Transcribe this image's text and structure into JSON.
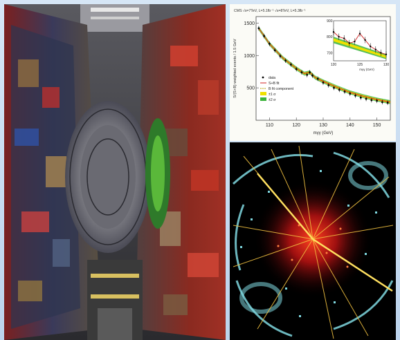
{
  "panels": {
    "detector_photo": "cms-detector-photo",
    "event_display": "collision-event-display"
  },
  "colors": {
    "background": "#cfe0f2",
    "data_marker": "#000000",
    "fit_line": "#d02020",
    "background_component": "#b8a000",
    "band_1sigma": "#f0e000",
    "band_2sigma": "#3cb43c",
    "event_tracks": "#f0c040",
    "event_hits": "#7fd8e0"
  },
  "chart_data": {
    "type": "scatter",
    "title": "CMS  √s=7TeV, L=5.1fb⁻¹  √s=8TeV, L=5.3fb⁻¹",
    "xlabel": "mγγ (GeV)",
    "ylabel": "S/(S+B) weighted events / 1.5 GeV",
    "xlim": [
      105,
      155
    ],
    "ylim": [
      0,
      1600
    ],
    "xticks": [
      110,
      120,
      130,
      140,
      150
    ],
    "yticks": [
      500,
      1000,
      1500
    ],
    "legend": {
      "position": "left",
      "entries": [
        "data",
        "S+B fit",
        "B fit component",
        "±1 σ",
        "±2 σ"
      ]
    },
    "series": [
      {
        "name": "data",
        "x": [
          106,
          108,
          110,
          112,
          114,
          116,
          118,
          120,
          122,
          124,
          125,
          126,
          128,
          130,
          132,
          134,
          136,
          138,
          140,
          142,
          144,
          146,
          148,
          150,
          152,
          154
        ],
        "y": [
          1420,
          1300,
          1180,
          1080,
          990,
          920,
          860,
          790,
          740,
          700,
          740,
          690,
          640,
          580,
          540,
          500,
          470,
          440,
          410,
          380,
          350,
          330,
          310,
          300,
          280,
          270
        ]
      },
      {
        "name": "S+B fit",
        "x": [
          106,
          110,
          115,
          120,
          123,
          125,
          127,
          130,
          135,
          140,
          145,
          150,
          155
        ],
        "y": [
          1420,
          1180,
          960,
          800,
          720,
          740,
          660,
          600,
          510,
          430,
          370,
          320,
          280
        ]
      }
    ],
    "inset": {
      "xlim": [
        120,
        130
      ],
      "ylim": [
        650,
        900
      ],
      "xticks": [
        120,
        125,
        130
      ],
      "yticks": [
        700,
        800,
        900
      ],
      "xlabel": "mγγ (GeV)",
      "x": [
        120,
        121,
        122,
        123,
        124,
        125,
        126,
        127,
        128,
        129,
        130
      ],
      "y": [
        830,
        800,
        790,
        760,
        770,
        820,
        780,
        740,
        720,
        700,
        690
      ]
    }
  }
}
